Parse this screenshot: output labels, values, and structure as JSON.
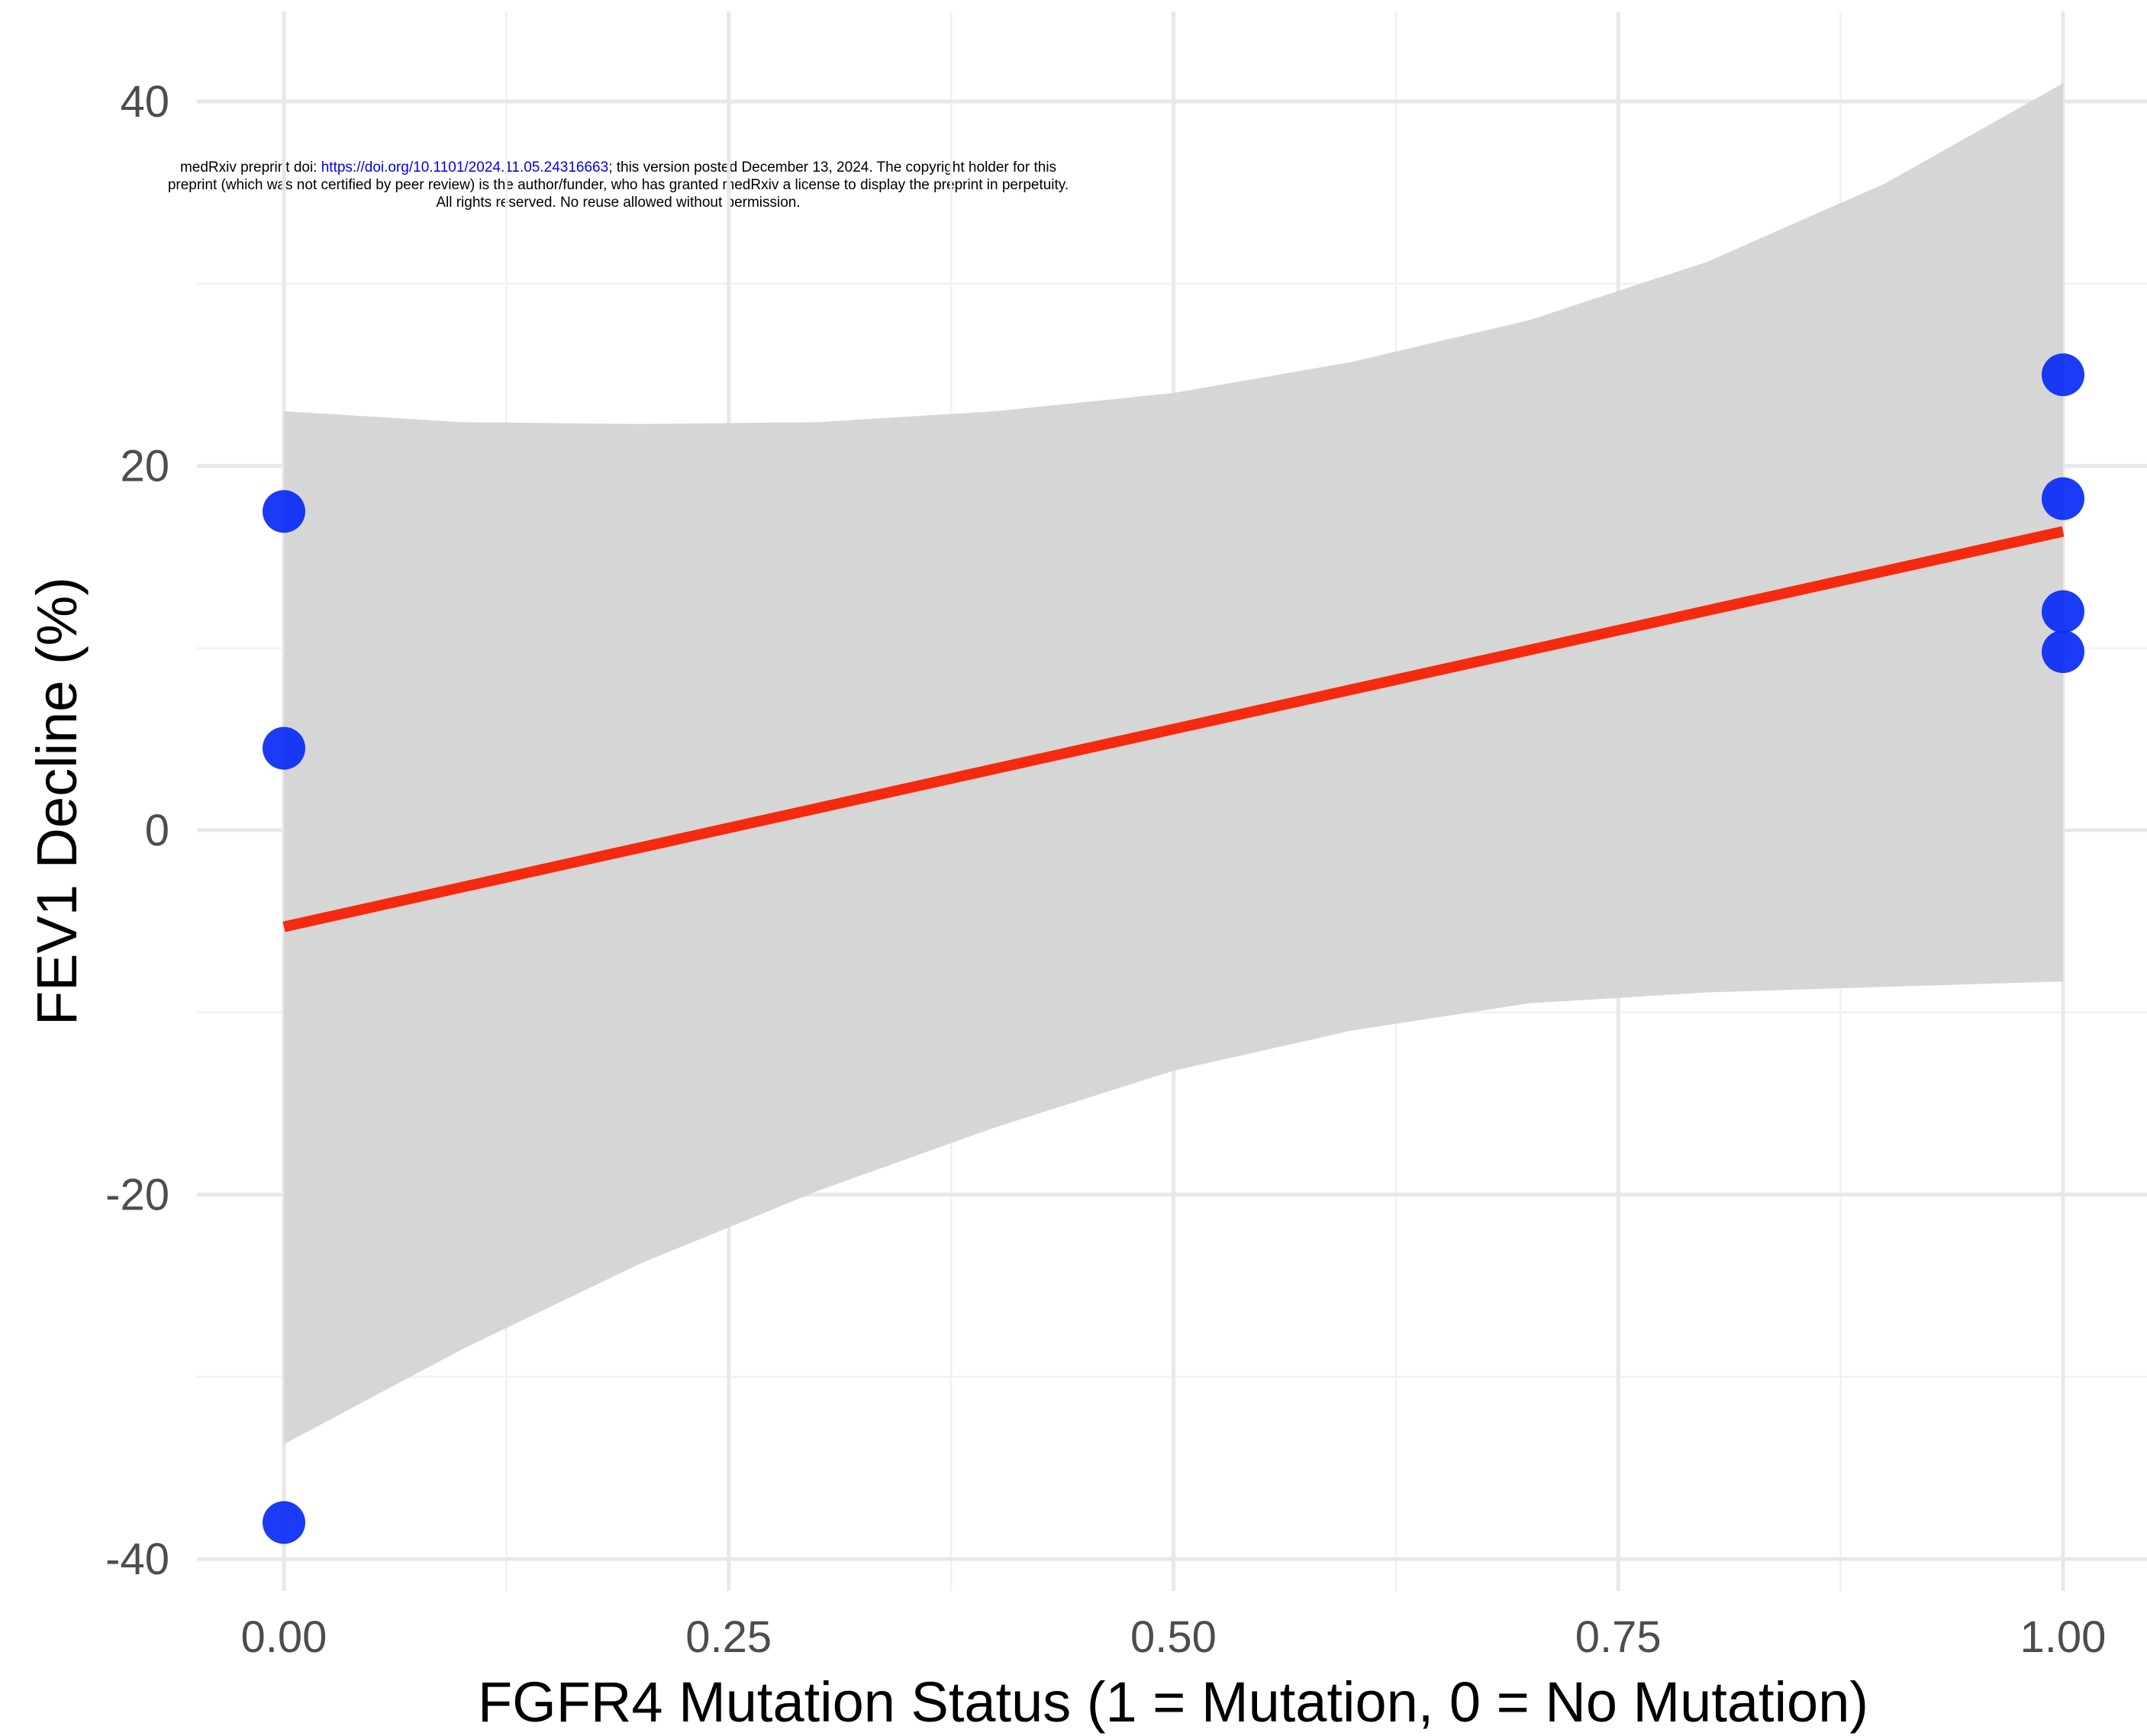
{
  "preprint_notice": {
    "line1_prefix": "medRxiv preprint doi: ",
    "doi_link": "https://doi.org/10.1101/2024.11.05.24316663",
    "line1_suffix": "; this version posted December 13, 2024. The copyright holder for this",
    "line2": "preprint (which was not certified by peer review) is the author/funder, who has granted medRxiv a license to display the preprint in perpetuity.",
    "line3": "All rights reserved. No reuse allowed without permission."
  },
  "chart_data": {
    "type": "scatter",
    "title": "",
    "xlabel": "FGFR4 Mutation Status (1 = Mutation, 0 = No Mutation)",
    "ylabel": "FEV1 Decline (%)",
    "xlim": [
      -0.05,
      1.05
    ],
    "ylim": [
      -42,
      45
    ],
    "x_ticks": [
      0.0,
      0.25,
      0.5,
      0.75,
      1.0
    ],
    "x_tick_labels": [
      "0.00",
      "0.25",
      "0.50",
      "0.75",
      "1.00"
    ],
    "y_ticks": [
      -40,
      -20,
      0,
      20,
      40
    ],
    "y_tick_labels": [
      "-40",
      "-20",
      "0",
      "20",
      "40"
    ],
    "grid": true,
    "points": [
      {
        "x": 0,
        "y": 17.5
      },
      {
        "x": 0,
        "y": 4.5
      },
      {
        "x": 0,
        "y": -38
      },
      {
        "x": 1,
        "y": 25
      },
      {
        "x": 1,
        "y": 18.2
      },
      {
        "x": 1,
        "y": 12
      },
      {
        "x": 1,
        "y": 9.8
      }
    ],
    "fit_line": {
      "x": [
        0,
        1
      ],
      "y": [
        -5.3,
        16.4
      ]
    },
    "confidence_band": {
      "x": [
        0,
        0.1,
        0.2,
        0.3,
        0.4,
        0.5,
        0.6,
        0.7,
        0.8,
        0.9,
        1.0
      ],
      "upper": [
        23,
        22.4,
        22.3,
        22.4,
        23.0,
        24.0,
        25.7,
        28.0,
        31.2,
        35.5,
        41
      ],
      "lower": [
        -33.7,
        -28.5,
        -23.8,
        -19.8,
        -16.3,
        -13.2,
        -11.0,
        -9.5,
        -8.9,
        -8.6,
        -8.3
      ]
    },
    "colors": {
      "points": "#0a2cf5",
      "fit_line": "#f52a0e",
      "band": "#d6d6d6",
      "grid_major": "#e8e8e8",
      "grid_minor": "#f2f2f2"
    }
  }
}
